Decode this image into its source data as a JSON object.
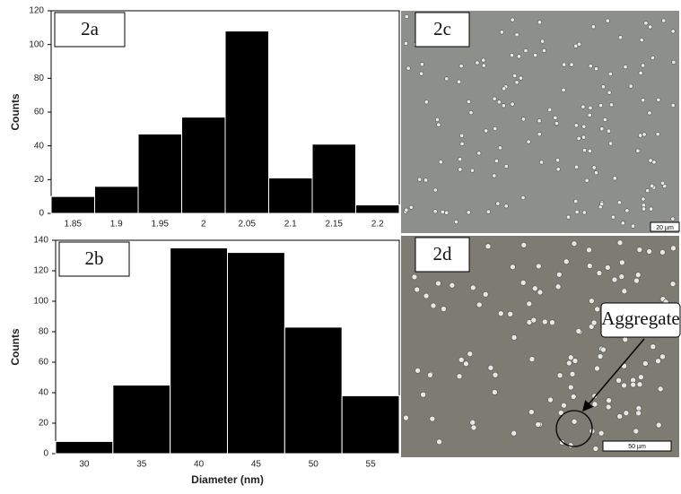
{
  "chart_data": [
    {
      "type": "bar",
      "title": "2a",
      "y_label": "Counts",
      "categories": [
        "1.85",
        "1.9",
        "1.95",
        "2",
        "2.05",
        "2.1",
        "2.15",
        "2.2"
      ],
      "values": [
        10,
        16,
        47,
        57,
        108,
        21,
        41,
        5
      ],
      "color": "#000000",
      "ylim": [
        0,
        120
      ],
      "yticks": [
        0,
        20,
        40,
        60,
        80,
        100,
        120
      ]
    },
    {
      "type": "bar",
      "title": "2b",
      "y_label": "Counts",
      "x_label": "Diameter (nm)",
      "categories": [
        "30",
        "35",
        "40",
        "45",
        "50",
        "55"
      ],
      "values": [
        8,
        45,
        135,
        132,
        83,
        38
      ],
      "color": "#000000",
      "ylim": [
        0,
        140
      ],
      "yticks": [
        0,
        20,
        40,
        60,
        80,
        100,
        120,
        140
      ]
    }
  ],
  "images": [
    {
      "label": "2c",
      "scale_bar": "20 µm"
    },
    {
      "label": "2d",
      "scale_bar": "50 µm",
      "annotation": "Aggregate"
    }
  ]
}
